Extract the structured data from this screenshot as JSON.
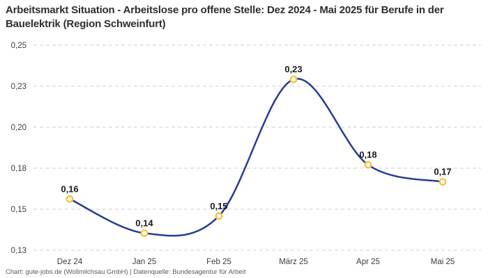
{
  "header": {
    "title": "Arbeitsmarkt Situation - Arbeitslose pro offene Stelle: Dez 2024 - Mai 2025 für Berufe in der Bauelektrik (Region Schweinfurt)"
  },
  "footer": {
    "credit": "Chart: gute-jobs.de (Wollmilchsau GmbH) | Datenquelle: Bundesagentur für Arbeit"
  },
  "chart_data": {
    "type": "line",
    "title": "Arbeitsmarkt Situation - Arbeitslose pro offene Stelle: Dez 2024 - Mai 2025 für Berufe in der Bauelektrik (Region Schweinfurt)",
    "categories": [
      "Dez 24",
      "Jan 25",
      "Feb 25",
      "März 25",
      "Apr 25",
      "Mai 25"
    ],
    "values": [
      0.16,
      0.14,
      0.15,
      0.23,
      0.18,
      0.17
    ],
    "value_labels": [
      "0,16",
      "0,14",
      "0,15",
      "0,23",
      "0,18",
      "0,17"
    ],
    "xlabel": "",
    "ylabel": "",
    "ylim": [
      0.13,
      0.25
    ],
    "yticks": [
      "0,25",
      "0,23",
      "0,20",
      "0,18",
      "0,15",
      "0,13"
    ],
    "grid": "horizontal-dashed",
    "line_smooth": true,
    "legend": "none",
    "colors": {
      "line": "#263c94",
      "marker_ring": "#f7c33c",
      "marker_fill": "#ffffff",
      "grid": "#cfcfcf",
      "value_label_text": "#1a1a1a",
      "axis_text": "#3d3d3d",
      "background": "#ffffff"
    }
  }
}
